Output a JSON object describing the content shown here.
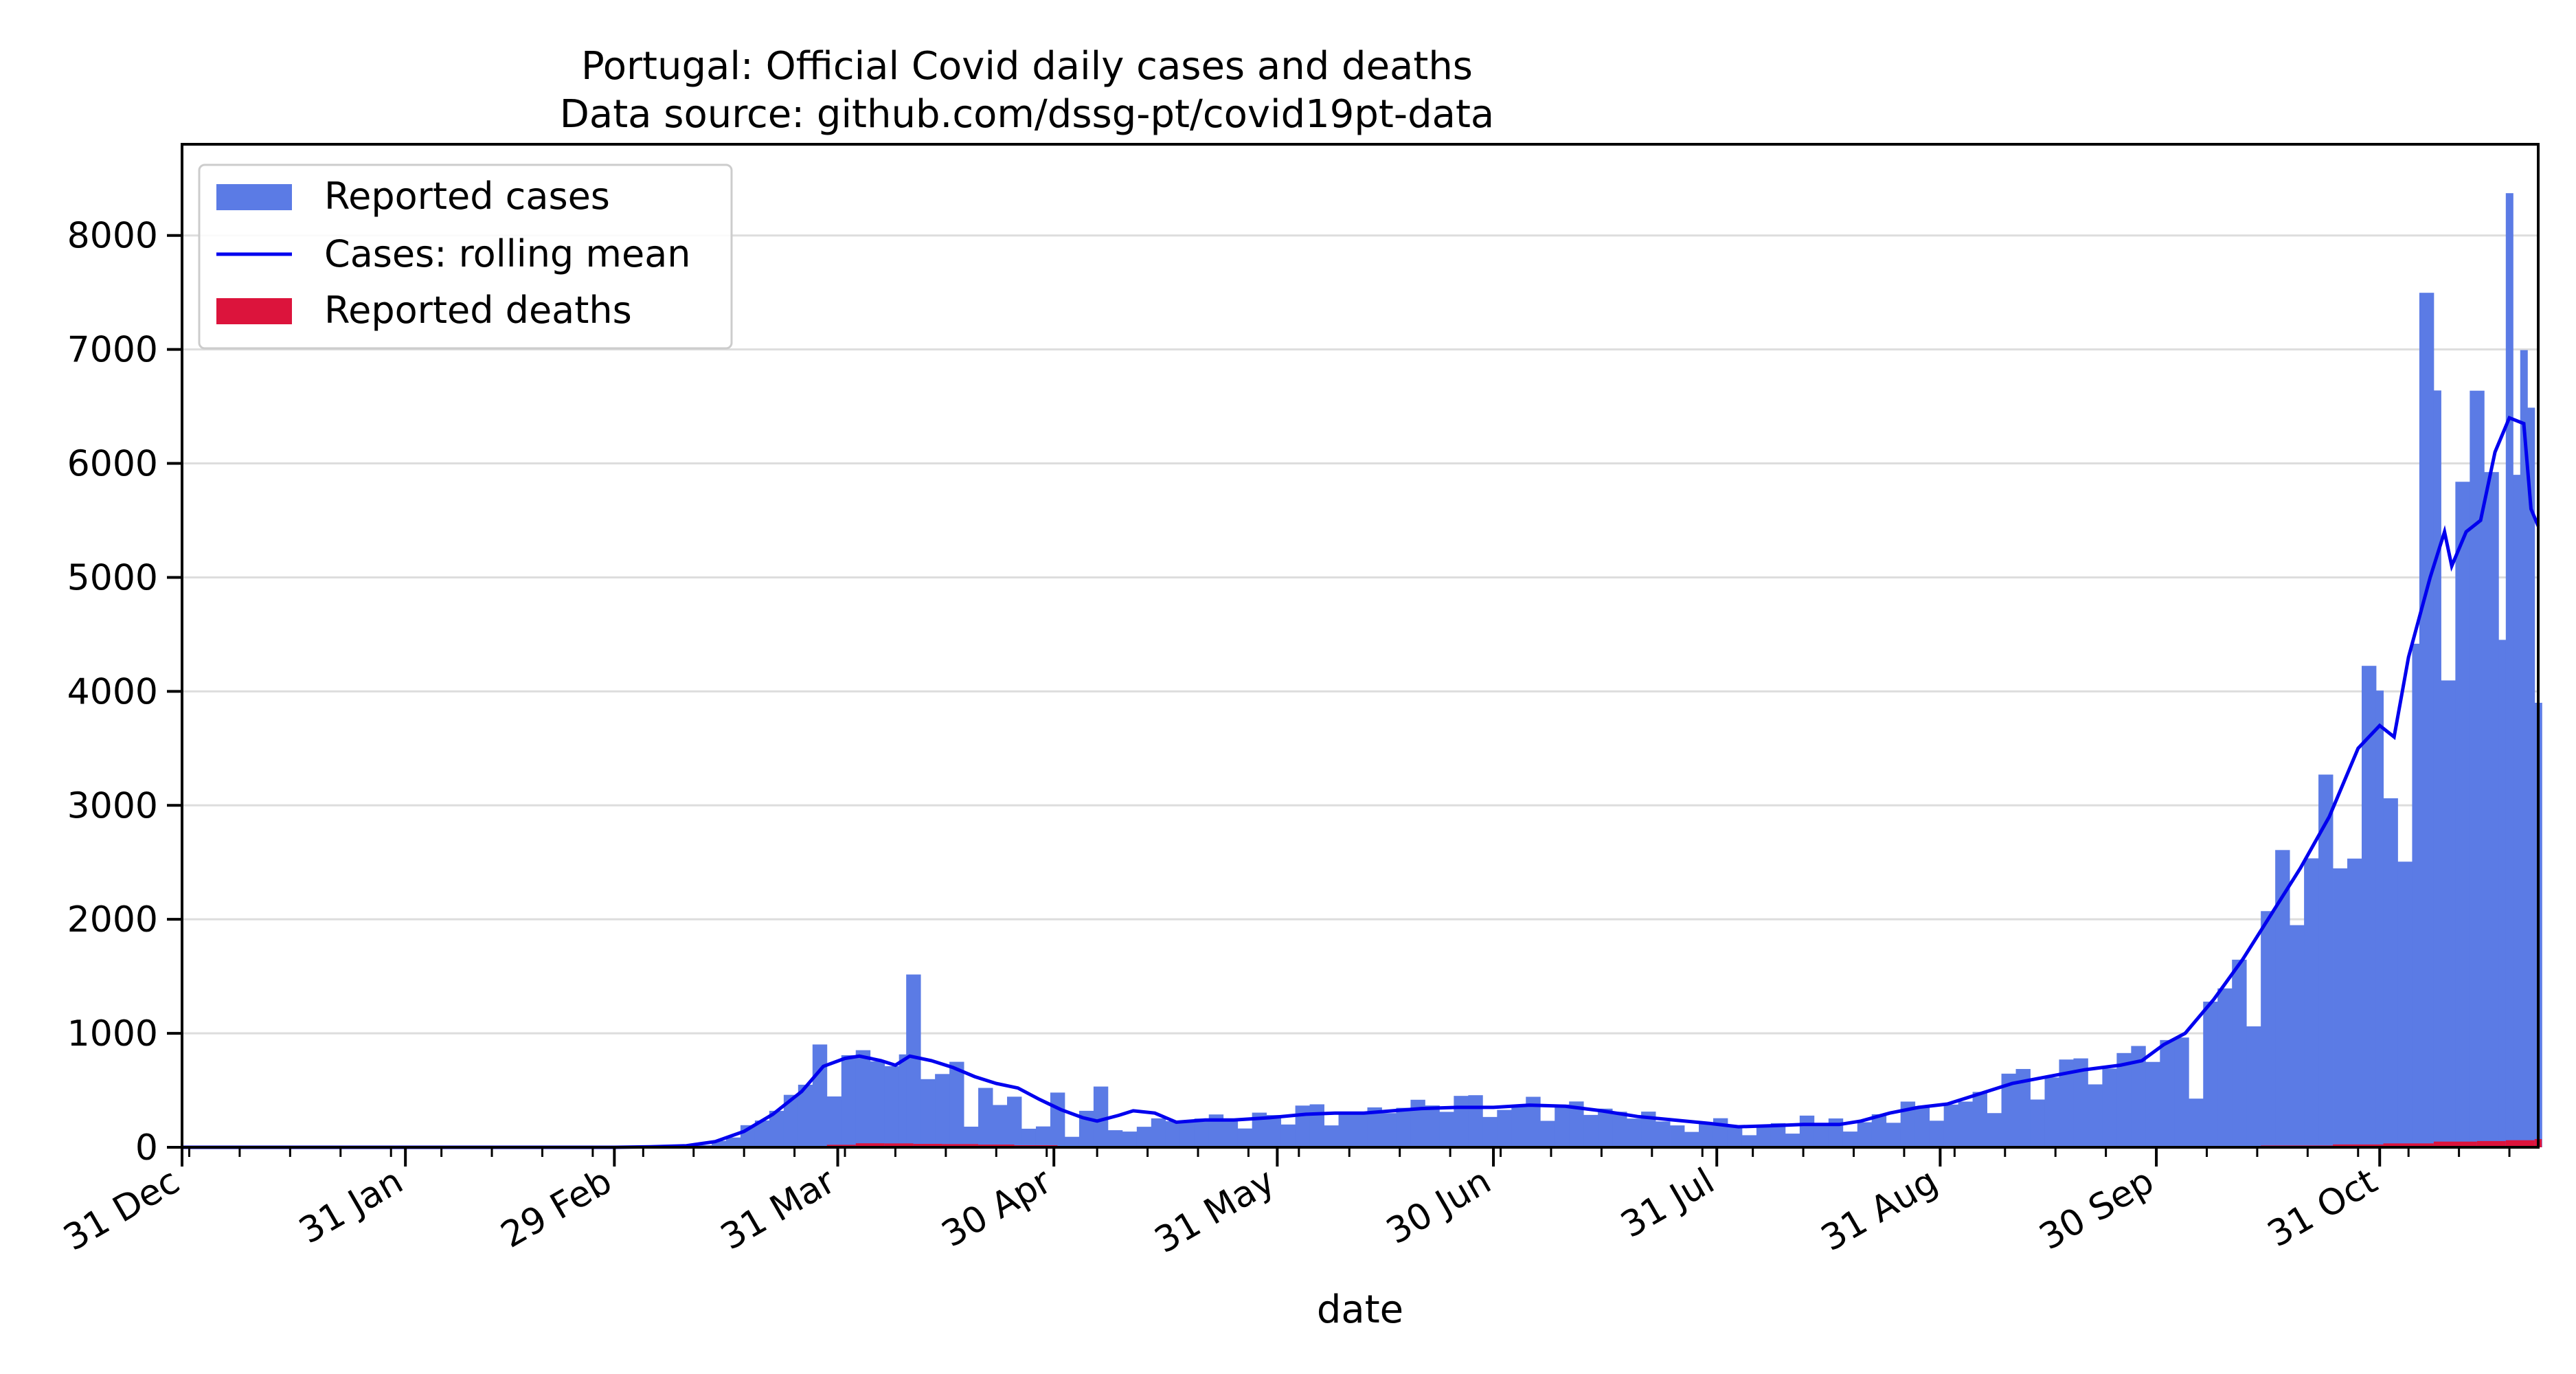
{
  "chart_data": {
    "type": "bar",
    "title": "Portugal: Official Covid daily cases and deaths",
    "subtitle": "Data source: github.com/dssg-pt/covid19pt-data",
    "xlabel": "date",
    "ylabel": "",
    "x_range": [
      "2019-12-31",
      "2020-11-22"
    ],
    "ylim": [
      0,
      8800
    ],
    "y_ticks": [
      0,
      1000,
      2000,
      3000,
      4000,
      5000,
      6000,
      7000,
      8000
    ],
    "x_ticks": [
      {
        "date": "2019-12-31",
        "label": "31 Dec"
      },
      {
        "date": "2020-01-31",
        "label": "31 Jan"
      },
      {
        "date": "2020-02-29",
        "label": "29 Feb"
      },
      {
        "date": "2020-03-31",
        "label": "31 Mar"
      },
      {
        "date": "2020-04-30",
        "label": "30 Apr"
      },
      {
        "date": "2020-05-31",
        "label": "31 May"
      },
      {
        "date": "2020-06-30",
        "label": "30 Jun"
      },
      {
        "date": "2020-07-31",
        "label": "31 Jul"
      },
      {
        "date": "2020-08-31",
        "label": "31 Aug"
      },
      {
        "date": "2020-09-30",
        "label": "30 Sep"
      },
      {
        "date": "2020-10-31",
        "label": "31 Oct"
      }
    ],
    "grid": "horizontal",
    "legend": "top-left",
    "colors": {
      "cases": "#5b7be5",
      "rolling": "#0000ee",
      "deaths": "#dc143c"
    },
    "series": [
      {
        "name": "Reported cases",
        "type": "bar",
        "points": [
          [
            "2020-03-02",
            2
          ],
          [
            "2020-03-05",
            5
          ],
          [
            "2020-03-08",
            9
          ],
          [
            "2020-03-10",
            11
          ],
          [
            "2020-03-12",
            19
          ],
          [
            "2020-03-14",
            57
          ],
          [
            "2020-03-16",
            86
          ],
          [
            "2020-03-18",
            194
          ],
          [
            "2020-03-20",
            235
          ],
          [
            "2020-03-22",
            320
          ],
          [
            "2020-03-24",
            460
          ],
          [
            "2020-03-26",
            549
          ],
          [
            "2020-03-28",
            902
          ],
          [
            "2020-03-30",
            446
          ],
          [
            "2020-04-01",
            808
          ],
          [
            "2020-04-03",
            852
          ],
          [
            "2020-04-05",
            754
          ],
          [
            "2020-04-07",
            712
          ],
          [
            "2020-04-09",
            815
          ],
          [
            "2020-04-10",
            1516
          ],
          [
            "2020-04-12",
            598
          ],
          [
            "2020-04-14",
            643
          ],
          [
            "2020-04-16",
            750
          ],
          [
            "2020-04-18",
            181
          ],
          [
            "2020-04-20",
            521
          ],
          [
            "2020-04-22",
            371
          ],
          [
            "2020-04-24",
            444
          ],
          [
            "2020-04-26",
            163
          ],
          [
            "2020-04-28",
            183
          ],
          [
            "2020-04-30",
            480
          ],
          [
            "2020-05-02",
            92
          ],
          [
            "2020-05-04",
            320
          ],
          [
            "2020-05-06",
            533
          ],
          [
            "2020-05-08",
            150
          ],
          [
            "2020-05-10",
            138
          ],
          [
            "2020-05-12",
            180
          ],
          [
            "2020-05-14",
            254
          ],
          [
            "2020-05-16",
            229
          ],
          [
            "2020-05-18",
            219
          ],
          [
            "2020-05-20",
            252
          ],
          [
            "2020-05-22",
            288
          ],
          [
            "2020-05-24",
            240
          ],
          [
            "2020-05-26",
            165
          ],
          [
            "2020-05-28",
            304
          ],
          [
            "2020-05-30",
            283
          ],
          [
            "2020-06-01",
            200
          ],
          [
            "2020-06-03",
            366
          ],
          [
            "2020-06-05",
            377
          ],
          [
            "2020-06-07",
            192
          ],
          [
            "2020-06-09",
            294
          ],
          [
            "2020-06-11",
            294
          ],
          [
            "2020-06-13",
            350
          ],
          [
            "2020-06-15",
            300
          ],
          [
            "2020-06-17",
            346
          ],
          [
            "2020-06-19",
            417
          ],
          [
            "2020-06-21",
            367
          ],
          [
            "2020-06-23",
            311
          ],
          [
            "2020-06-25",
            451
          ],
          [
            "2020-06-27",
            457
          ],
          [
            "2020-06-29",
            266
          ],
          [
            "2020-07-01",
            328
          ],
          [
            "2020-07-03",
            374
          ],
          [
            "2020-07-05",
            443
          ],
          [
            "2020-07-07",
            232
          ],
          [
            "2020-07-09",
            375
          ],
          [
            "2020-07-11",
            402
          ],
          [
            "2020-07-13",
            284
          ],
          [
            "2020-07-15",
            339
          ],
          [
            "2020-07-17",
            312
          ],
          [
            "2020-07-19",
            252
          ],
          [
            "2020-07-21",
            313
          ],
          [
            "2020-07-23",
            227
          ],
          [
            "2020-07-25",
            192
          ],
          [
            "2020-07-27",
            135
          ],
          [
            "2020-07-29",
            204
          ],
          [
            "2020-07-31",
            255
          ],
          [
            "2020-08-02",
            185
          ],
          [
            "2020-08-04",
            106
          ],
          [
            "2020-08-06",
            180
          ],
          [
            "2020-08-08",
            212
          ],
          [
            "2020-08-10",
            120
          ],
          [
            "2020-08-12",
            278
          ],
          [
            "2020-08-14",
            189
          ],
          [
            "2020-08-16",
            253
          ],
          [
            "2020-08-18",
            138
          ],
          [
            "2020-08-20",
            220
          ],
          [
            "2020-08-22",
            290
          ],
          [
            "2020-08-24",
            215
          ],
          [
            "2020-08-26",
            401
          ],
          [
            "2020-08-28",
            362
          ],
          [
            "2020-08-30",
            233
          ],
          [
            "2020-09-01",
            375
          ],
          [
            "2020-09-03",
            401
          ],
          [
            "2020-09-05",
            486
          ],
          [
            "2020-09-07",
            300
          ],
          [
            "2020-09-09",
            646
          ],
          [
            "2020-09-11",
            687
          ],
          [
            "2020-09-13",
            419
          ],
          [
            "2020-09-15",
            613
          ],
          [
            "2020-09-17",
            770
          ],
          [
            "2020-09-19",
            780
          ],
          [
            "2020-09-21",
            552
          ],
          [
            "2020-09-23",
            691
          ],
          [
            "2020-09-25",
            827
          ],
          [
            "2020-09-27",
            889
          ],
          [
            "2020-09-29",
            749
          ],
          [
            "2020-10-01",
            941
          ],
          [
            "2020-10-03",
            963
          ],
          [
            "2020-10-05",
            427
          ],
          [
            "2020-10-07",
            1278
          ],
          [
            "2020-10-09",
            1394
          ],
          [
            "2020-10-11",
            1646
          ],
          [
            "2020-10-13",
            1061
          ],
          [
            "2020-10-15",
            2072
          ],
          [
            "2020-10-17",
            2608
          ],
          [
            "2020-10-19",
            1949
          ],
          [
            "2020-10-21",
            2535
          ],
          [
            "2020-10-23",
            3270
          ],
          [
            "2020-10-25",
            2447
          ],
          [
            "2020-10-27",
            2533
          ],
          [
            "2020-10-29",
            4224
          ],
          [
            "2020-10-31",
            4007
          ],
          [
            "2020-11-01",
            3062
          ],
          [
            "2020-11-03",
            2506
          ],
          [
            "2020-11-05",
            4418
          ],
          [
            "2020-11-06",
            7497
          ],
          [
            "2020-11-08",
            6640
          ],
          [
            "2020-11-09",
            4096
          ],
          [
            "2020-11-11",
            5839
          ],
          [
            "2020-11-13",
            6638
          ],
          [
            "2020-11-15",
            5924
          ],
          [
            "2020-11-17",
            4452
          ],
          [
            "2020-11-18",
            8371
          ],
          [
            "2020-11-19",
            5900
          ],
          [
            "2020-11-20",
            6994
          ],
          [
            "2020-11-21",
            6489
          ],
          [
            "2020-11-22",
            3900
          ]
        ]
      },
      {
        "name": "Cases: rolling mean",
        "type": "line",
        "points": [
          [
            "2019-12-31",
            0
          ],
          [
            "2020-02-29",
            0
          ],
          [
            "2020-03-05",
            4
          ],
          [
            "2020-03-10",
            14
          ],
          [
            "2020-03-14",
            50
          ],
          [
            "2020-03-18",
            140
          ],
          [
            "2020-03-22",
            290
          ],
          [
            "2020-03-26",
            490
          ],
          [
            "2020-03-29",
            710
          ],
          [
            "2020-04-01",
            780
          ],
          [
            "2020-04-03",
            800
          ],
          [
            "2020-04-06",
            760
          ],
          [
            "2020-04-08",
            720
          ],
          [
            "2020-04-10",
            800
          ],
          [
            "2020-04-13",
            760
          ],
          [
            "2020-04-16",
            700
          ],
          [
            "2020-04-19",
            620
          ],
          [
            "2020-04-22",
            560
          ],
          [
            "2020-04-25",
            520
          ],
          [
            "2020-04-28",
            420
          ],
          [
            "2020-05-01",
            330
          ],
          [
            "2020-05-04",
            260
          ],
          [
            "2020-05-06",
            230
          ],
          [
            "2020-05-09",
            280
          ],
          [
            "2020-05-11",
            320
          ],
          [
            "2020-05-14",
            300
          ],
          [
            "2020-05-17",
            220
          ],
          [
            "2020-05-21",
            240
          ],
          [
            "2020-05-25",
            240
          ],
          [
            "2020-05-30",
            260
          ],
          [
            "2020-06-04",
            290
          ],
          [
            "2020-06-08",
            300
          ],
          [
            "2020-06-12",
            300
          ],
          [
            "2020-06-16",
            320
          ],
          [
            "2020-06-20",
            340
          ],
          [
            "2020-06-25",
            350
          ],
          [
            "2020-06-30",
            350
          ],
          [
            "2020-07-05",
            370
          ],
          [
            "2020-07-10",
            360
          ],
          [
            "2020-07-15",
            320
          ],
          [
            "2020-07-20",
            270
          ],
          [
            "2020-07-25",
            240
          ],
          [
            "2020-07-30",
            210
          ],
          [
            "2020-08-03",
            180
          ],
          [
            "2020-08-08",
            190
          ],
          [
            "2020-08-12",
            200
          ],
          [
            "2020-08-17",
            200
          ],
          [
            "2020-08-20",
            230
          ],
          [
            "2020-08-24",
            300
          ],
          [
            "2020-08-28",
            350
          ],
          [
            "2020-09-01",
            380
          ],
          [
            "2020-09-05",
            460
          ],
          [
            "2020-09-10",
            560
          ],
          [
            "2020-09-15",
            620
          ],
          [
            "2020-09-20",
            680
          ],
          [
            "2020-09-25",
            720
          ],
          [
            "2020-09-28",
            760
          ],
          [
            "2020-10-01",
            900
          ],
          [
            "2020-10-04",
            1000
          ],
          [
            "2020-10-08",
            1300
          ],
          [
            "2020-10-12",
            1650
          ],
          [
            "2020-10-16",
            2050
          ],
          [
            "2020-10-20",
            2450
          ],
          [
            "2020-10-24",
            2900
          ],
          [
            "2020-10-28",
            3500
          ],
          [
            "2020-10-31",
            3700
          ],
          [
            "2020-11-02",
            3600
          ],
          [
            "2020-11-04",
            4300
          ],
          [
            "2020-11-07",
            5000
          ],
          [
            "2020-11-09",
            5400
          ],
          [
            "2020-11-10",
            5100
          ],
          [
            "2020-11-12",
            5400
          ],
          [
            "2020-11-14",
            5500
          ],
          [
            "2020-11-16",
            6100
          ],
          [
            "2020-11-18",
            6400
          ],
          [
            "2020-11-20",
            6350
          ],
          [
            "2020-11-21",
            5600
          ],
          [
            "2020-11-22",
            5450
          ]
        ]
      },
      {
        "name": "Reported deaths",
        "type": "bar",
        "points": [
          [
            "2020-03-20",
            6
          ],
          [
            "2020-03-25",
            10
          ],
          [
            "2020-03-30",
            22
          ],
          [
            "2020-04-03",
            35
          ],
          [
            "2020-04-07",
            34
          ],
          [
            "2020-04-11",
            30
          ],
          [
            "2020-04-15",
            28
          ],
          [
            "2020-04-20",
            24
          ],
          [
            "2020-04-25",
            18
          ],
          [
            "2020-05-01",
            12
          ],
          [
            "2020-05-10",
            10
          ],
          [
            "2020-05-20",
            8
          ],
          [
            "2020-06-01",
            6
          ],
          [
            "2020-07-01",
            5
          ],
          [
            "2020-08-01",
            3
          ],
          [
            "2020-09-01",
            4
          ],
          [
            "2020-10-01",
            8
          ],
          [
            "2020-10-15",
            16
          ],
          [
            "2020-10-25",
            25
          ],
          [
            "2020-11-01",
            34
          ],
          [
            "2020-11-08",
            50
          ],
          [
            "2020-11-14",
            55
          ],
          [
            "2020-11-18",
            62
          ],
          [
            "2020-11-22",
            72
          ]
        ]
      }
    ]
  }
}
